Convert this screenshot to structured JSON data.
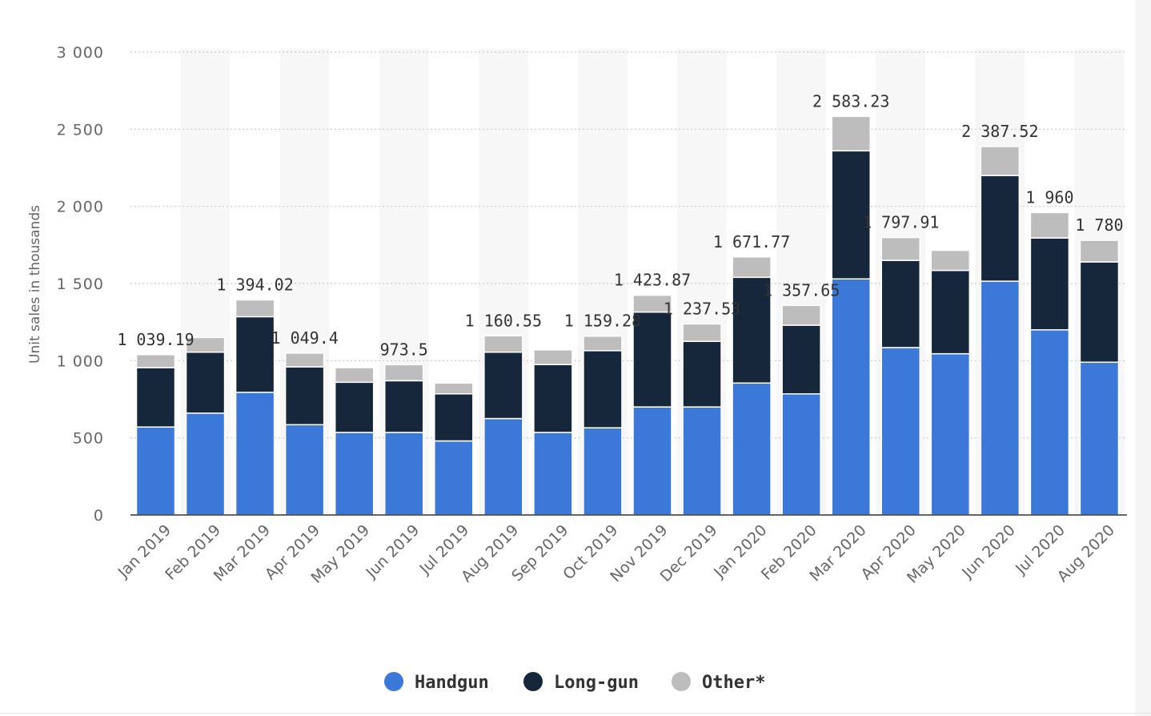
{
  "chart_data": {
    "type": "bar",
    "stacked": true,
    "title": "",
    "xlabel": "",
    "ylabel": "Unit sales in thousands",
    "ylim": [
      0,
      3000
    ],
    "yticks": [
      0,
      500,
      1000,
      1500,
      2000,
      2500,
      3000
    ],
    "ytick_labels": [
      "0",
      "500",
      "1 000",
      "1 500",
      "2 000",
      "2 500",
      "3 000"
    ],
    "grid": true,
    "legend_position": "bottom-center",
    "categories": [
      "Jan 2019",
      "Feb 2019",
      "Mar 2019",
      "Apr 2019",
      "May 2019",
      "Jun 2019",
      "Jul 2019",
      "Aug 2019",
      "Sep 2019",
      "Oct 2019",
      "Nov 2019",
      "Dec 2019",
      "Jan 2020",
      "Feb 2020",
      "Mar 2020",
      "Apr 2020",
      "May 2020",
      "Jun 2020",
      "Jul 2020",
      "Aug 2020"
    ],
    "series": [
      {
        "name": "Handgun",
        "color": "#3c78d8",
        "values": [
          570,
          660,
          795,
          585,
          535,
          535,
          480,
          625,
          535,
          565,
          700,
          700,
          855,
          785,
          1530,
          1085,
          1045,
          1515,
          1200,
          990
        ]
      },
      {
        "name": "Long-gun",
        "color": "#16263b",
        "values": [
          385,
          395,
          490,
          375,
          325,
          335,
          305,
          430,
          440,
          500,
          615,
          425,
          685,
          445,
          830,
          565,
          540,
          685,
          595,
          650
        ]
      },
      {
        "name": "Other*",
        "color": "#bdbdbd",
        "values": [
          84,
          95,
          109,
          89,
          95,
          104,
          70,
          106,
          95,
          94,
          109,
          113,
          132,
          128,
          223,
          148,
          130,
          188,
          165,
          140
        ]
      }
    ],
    "total_labels": [
      "1 039.19",
      "",
      "1 394.02",
      "1 049.4",
      "",
      "973.5",
      "",
      "1 160.55",
      "",
      "1 159.28",
      "1 423.87",
      "1 237.53",
      "1 671.77",
      "1 357.65",
      "2 583.23",
      "1 797.91",
      "",
      "2 387.52",
      "1 960",
      "1 780"
    ]
  }
}
